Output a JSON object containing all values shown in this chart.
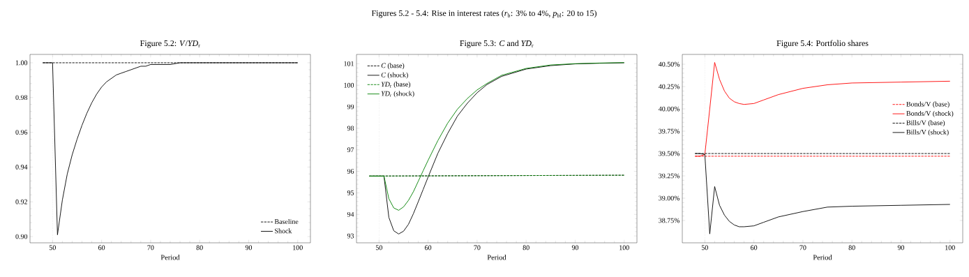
{
  "chart_data": [
    {
      "type": "line",
      "title": "Figure 5.2: *V*/*YD*$_{r}$",
      "xlabel": "Period",
      "annotations": [
        "Figures 5.2 - 5.4: Rise in interest rates (*r*$_{b}$: 3% to 4%, *p*$_{bl}$: 20 to 15)"
      ],
      "xlim": [
        45.4,
        102.6
      ],
      "xticks": [
        50,
        60,
        70,
        80,
        90,
        100
      ],
      "ylim": [
        0.8964,
        1.0048
      ],
      "yticks": [
        {
          "value": 0.9,
          "label": "0.90"
        },
        {
          "value": 0.92,
          "label": "0.92"
        },
        {
          "value": 0.94,
          "label": "0.94"
        },
        {
          "value": 0.96,
          "label": "0.96"
        },
        {
          "value": 0.98,
          "label": "0.98"
        },
        {
          "value": 1.0,
          "label": "1.00"
        }
      ],
      "legend": "bottom right",
      "ref_lines": [
        {
          "axis": "x",
          "value": 50,
          "color": "#b0b0b0",
          "line_style": "dotted"
        }
      ],
      "series": [
        {
          "name": "Baseline",
          "color": "#000000",
          "line_style": "dashed",
          "x": [
            48,
            100
          ],
          "values": [
            1.0,
            1.0
          ]
        },
        {
          "name": "Shock",
          "color": "#000000",
          "line_style": "solid",
          "x": [
            48,
            49,
            50,
            51,
            52,
            53,
            54,
            55,
            56,
            57,
            58,
            59,
            60,
            61,
            62,
            63,
            64,
            65,
            66,
            67,
            68,
            69,
            70,
            72,
            74,
            76,
            78,
            80,
            85,
            90,
            95,
            100
          ],
          "values": [
            1.0,
            1.0,
            1.0,
            0.901,
            0.921,
            0.936,
            0.947,
            0.956,
            0.964,
            0.971,
            0.977,
            0.982,
            0.986,
            0.989,
            0.991,
            0.993,
            0.994,
            0.995,
            0.996,
            0.997,
            0.998,
            0.998,
            0.999,
            0.999,
            0.999,
            1.0,
            1.0,
            1.0,
            1.0,
            1.0,
            1.0,
            1.0
          ]
        }
      ]
    },
    {
      "type": "line",
      "title": "Figure 5.3: *C* and *YD*$_{r}$",
      "xlabel": "Period",
      "xlim": [
        45.4,
        102.6
      ],
      "xticks": [
        50,
        60,
        70,
        80,
        90,
        100
      ],
      "ylim": [
        92.68,
        101.43
      ],
      "yticks": [
        93,
        94,
        95,
        96,
        97,
        98,
        99,
        100,
        101
      ],
      "legend": "top left",
      "ref_lines": [
        {
          "axis": "x",
          "value": 50,
          "color": "#b0b0b0",
          "line_style": "dotted"
        }
      ],
      "series": [
        {
          "name": "*C* (base)",
          "color": "#000000",
          "line_style": "dashed",
          "x": [
            48,
            100
          ],
          "values": [
            95.78,
            95.82
          ]
        },
        {
          "name": "*C* (shock)",
          "color": "#000000",
          "line_style": "solid",
          "x": [
            48,
            49,
            50,
            51,
            52,
            53,
            54,
            55,
            56,
            57,
            58,
            59,
            60,
            62,
            64,
            66,
            68,
            70,
            72,
            75,
            80,
            85,
            90,
            95,
            100
          ],
          "values": [
            95.78,
            95.78,
            95.78,
            95.78,
            93.86,
            93.24,
            93.09,
            93.22,
            93.54,
            94.03,
            94.59,
            95.16,
            95.73,
            96.84,
            97.76,
            98.57,
            99.16,
            99.65,
            100.03,
            100.41,
            100.75,
            100.91,
            100.99,
            101.02,
            101.04
          ]
        },
        {
          "name": "*YD*$_{r}$ (base)",
          "color": "#008000",
          "line_style": "dashed",
          "x": [
            48,
            100
          ],
          "values": [
            95.78,
            95.82
          ]
        },
        {
          "name": "*YD*$_{r}$ (shock)",
          "color": "#008000",
          "line_style": "solid",
          "x": [
            48,
            49,
            50,
            51,
            52,
            53,
            54,
            55,
            56,
            57,
            58,
            59,
            60,
            62,
            64,
            66,
            68,
            70,
            72,
            75,
            80,
            85,
            90,
            95,
            100
          ],
          "values": [
            95.78,
            95.78,
            95.78,
            95.78,
            94.73,
            94.3,
            94.19,
            94.35,
            94.65,
            95.05,
            95.54,
            96.03,
            96.51,
            97.43,
            98.24,
            98.89,
            99.38,
            99.78,
            100.08,
            100.46,
            100.78,
            100.94,
            101.0,
            101.03,
            101.05
          ]
        }
      ]
    },
    {
      "type": "line",
      "title": "Figure 5.4: Portfolio shares",
      "xlabel": "Period",
      "xlim": [
        45.4,
        102.6
      ],
      "xticks": [
        50,
        60,
        70,
        80,
        90,
        100
      ],
      "ylim": [
        38.5,
        40.61
      ],
      "yticks": [
        {
          "value": 38.75,
          "label": "38.75%"
        },
        {
          "value": 39.0,
          "label": "39.00%"
        },
        {
          "value": 39.25,
          "label": "39.25%"
        },
        {
          "value": 39.5,
          "label": "39.50%"
        },
        {
          "value": 39.75,
          "label": "39.75%"
        },
        {
          "value": 40.0,
          "label": "40.00%"
        },
        {
          "value": 40.25,
          "label": "40.25%"
        },
        {
          "value": 40.5,
          "label": "40.50%"
        }
      ],
      "legend": "right",
      "ref_lines": [
        {
          "axis": "x",
          "value": 50,
          "color": "#b0b0b0",
          "line_style": "dotted"
        }
      ],
      "series": [
        {
          "name": "Bonds/V (base)",
          "color": "#ff0000",
          "line_style": "dashed",
          "x": [
            48,
            100
          ],
          "values": [
            39.47,
            39.47
          ]
        },
        {
          "name": "Bonds/V (shock)",
          "color": "#ff0000",
          "line_style": "solid",
          "x": [
            48,
            49,
            50,
            51,
            52,
            53,
            54,
            55,
            56,
            57,
            58,
            60,
            62,
            65,
            70,
            75,
            80,
            90,
            100
          ],
          "values": [
            39.47,
            39.47,
            39.49,
            40.0,
            40.52,
            40.33,
            40.2,
            40.12,
            40.08,
            40.06,
            40.05,
            40.06,
            40.1,
            40.16,
            40.23,
            40.27,
            40.29,
            40.3,
            40.31
          ]
        },
        {
          "name": "Bills/V (base)",
          "color": "#000000",
          "line_style": "dashed",
          "x": [
            48,
            100
          ],
          "values": [
            39.5,
            39.5
          ]
        },
        {
          "name": "Bills/V (shock)",
          "color": "#000000",
          "line_style": "solid",
          "x": [
            48,
            49,
            50,
            51,
            52,
            53,
            54,
            55,
            56,
            57,
            58,
            60,
            62,
            65,
            70,
            75,
            80,
            90,
            100
          ],
          "values": [
            39.5,
            39.5,
            39.49,
            38.6,
            39.13,
            38.92,
            38.81,
            38.74,
            38.7,
            38.68,
            38.68,
            38.69,
            38.73,
            38.79,
            38.85,
            38.9,
            38.91,
            38.92,
            38.93
          ]
        }
      ]
    }
  ]
}
